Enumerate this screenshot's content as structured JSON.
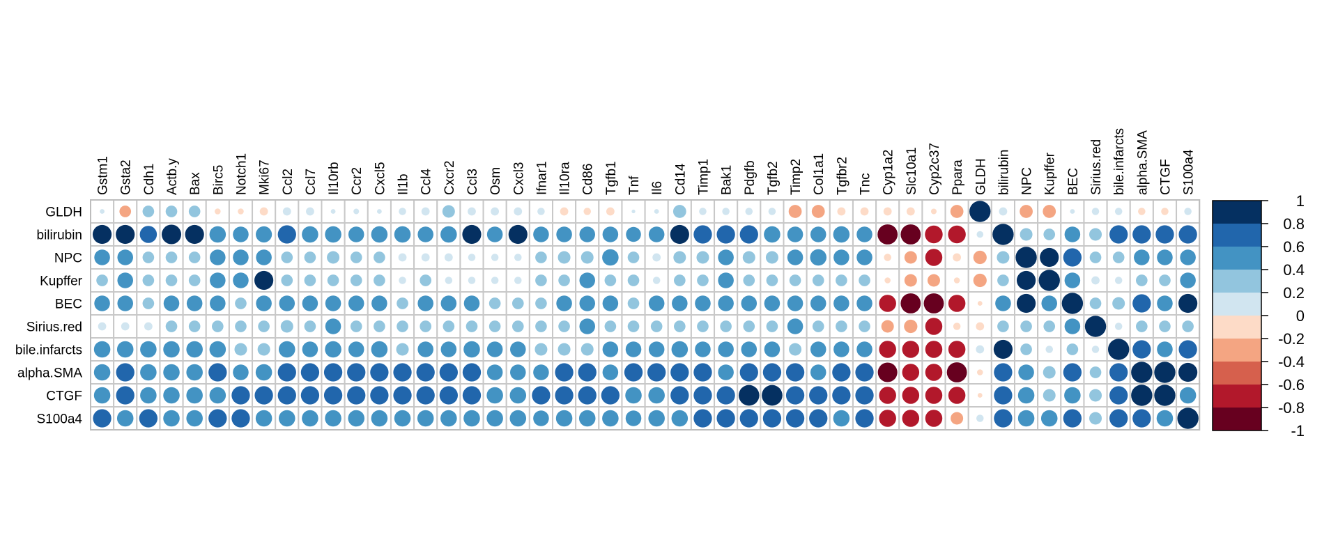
{
  "chart_data": {
    "type": "heatmap",
    "subtype": "correlation-circles",
    "row_labels": [
      "GLDH",
      "bilirubin",
      "NPC",
      "Kupffer",
      "BEC",
      "Sirius.red",
      "bile.infarcts",
      "alpha.SMA",
      "CTGF",
      "S100a4"
    ],
    "col_labels": [
      "Gstm1",
      "Gsta2",
      "Cdh1",
      "Actb.y",
      "Bax",
      "Birc5",
      "Notch1",
      "Mki67",
      "Ccl2",
      "Ccl7",
      "Il10rb",
      "Ccr2",
      "Cxcl5",
      "Il1b",
      "Ccl4",
      "Cxcr2",
      "Ccl3",
      "Osm",
      "Cxcl3",
      "Ifnar1",
      "Il10ra",
      "Cd86",
      "Tgfb1",
      "Tnf",
      "Il6",
      "Cd14",
      "Timp1",
      "Bak1",
      "Pdgfb",
      "Tgfb2",
      "Timp2",
      "Col1a1",
      "Tgfbr2",
      "Tnc",
      "Cyp1a2",
      "Slc10a1",
      "Cyp2c37",
      "Ppara",
      "GLDH",
      "bilirubin",
      "NPC",
      "Kupffer",
      "BEC",
      "Sirius.red",
      "bile.infarcts",
      "alpha.SMA",
      "CTGF",
      "S100a4"
    ],
    "values": [
      [
        0.05,
        -0.3,
        0.3,
        0.3,
        0.3,
        -0.08,
        -0.08,
        -0.15,
        0.15,
        0.15,
        0.05,
        0.07,
        0.05,
        0.12,
        0.15,
        0.35,
        0.15,
        0.15,
        0.15,
        0.12,
        -0.15,
        -0.12,
        -0.15,
        0.03,
        0.05,
        0.38,
        0.12,
        0.12,
        0.12,
        0.12,
        -0.38,
        -0.38,
        -0.15,
        -0.15,
        -0.15,
        -0.15,
        -0.07,
        -0.38,
        1,
        0.15,
        -0.38,
        -0.38,
        0.05,
        0.12,
        0.12,
        -0.12,
        -0.12,
        0.12
      ],
      [
        0.8,
        0.8,
        0.65,
        0.85,
        0.8,
        0.6,
        0.55,
        0.58,
        0.75,
        0.6,
        0.6,
        0.55,
        0.6,
        0.6,
        0.55,
        0.6,
        0.8,
        0.55,
        0.8,
        0.55,
        0.55,
        0.55,
        0.55,
        0.5,
        0.55,
        0.8,
        0.75,
        0.75,
        0.75,
        0.6,
        0.55,
        0.55,
        0.6,
        0.55,
        -0.9,
        -0.9,
        -0.7,
        -0.7,
        0.1,
        1,
        0.35,
        0.3,
        0.55,
        0.35,
        0.75,
        0.75,
        0.75,
        0.75
      ],
      [
        0.55,
        0.55,
        0.3,
        0.3,
        0.3,
        0.55,
        0.55,
        0.55,
        0.3,
        0.3,
        0.35,
        0.3,
        0.3,
        0.15,
        0.15,
        0.15,
        0.12,
        0.12,
        0.12,
        0.3,
        0.35,
        0.35,
        0.6,
        0.3,
        0.15,
        0.35,
        0.35,
        0.55,
        0.35,
        0.35,
        0.55,
        0.6,
        0.55,
        0.55,
        -0.12,
        -0.35,
        -0.65,
        -0.15,
        -0.4,
        0.35,
        1,
        0.8,
        0.75,
        0.3,
        0.3,
        0.55,
        0.55,
        0.55
      ],
      [
        0.3,
        0.55,
        0.3,
        0.3,
        0.3,
        0.55,
        0.55,
        0.8,
        0.3,
        0.3,
        0.3,
        0.3,
        0.3,
        0.12,
        0.3,
        0.12,
        0.12,
        0.12,
        0.12,
        0.3,
        0.3,
        0.55,
        0.3,
        0.3,
        0.12,
        0.3,
        0.3,
        0.55,
        0.3,
        0.3,
        0.3,
        0.3,
        0.3,
        0.3,
        -0.08,
        -0.35,
        -0.35,
        -0.08,
        -0.4,
        0.3,
        0.8,
        1,
        0.55,
        0.15,
        0.12,
        0.3,
        0.3,
        0.55
      ],
      [
        0.55,
        0.55,
        0.3,
        0.55,
        0.55,
        0.55,
        0.3,
        0.55,
        0.55,
        0.55,
        0.55,
        0.55,
        0.55,
        0.3,
        0.55,
        0.55,
        0.55,
        0.3,
        0.3,
        0.3,
        0.55,
        0.55,
        0.55,
        0.3,
        0.55,
        0.55,
        0.55,
        0.55,
        0.55,
        0.55,
        0.55,
        0.55,
        0.55,
        0.55,
        -0.65,
        -0.9,
        -0.9,
        -0.65,
        -0.05,
        0.55,
        0.8,
        0.55,
        1,
        0.3,
        0.35,
        0.75,
        0.55,
        0.8
      ],
      [
        0.15,
        0.15,
        0.15,
        0.3,
        0.3,
        0.3,
        0.3,
        0.3,
        0.35,
        0.3,
        0.55,
        0.3,
        0.3,
        0.3,
        0.3,
        0.3,
        0.3,
        0.3,
        0.3,
        0.3,
        0.3,
        0.55,
        0.3,
        0.3,
        0.3,
        0.3,
        0.3,
        0.3,
        0.3,
        0.3,
        0.55,
        0.3,
        0.3,
        0.3,
        -0.35,
        -0.4,
        -0.65,
        -0.12,
        -0.15,
        0.3,
        0.3,
        0.3,
        0.55,
        1,
        0.12,
        0.3,
        0.3,
        0.3
      ],
      [
        0.6,
        0.6,
        0.6,
        0.6,
        0.6,
        0.6,
        0.35,
        0.35,
        0.6,
        0.55,
        0.6,
        0.55,
        0.6,
        0.35,
        0.55,
        0.55,
        0.6,
        0.55,
        0.55,
        0.35,
        0.35,
        0.35,
        0.55,
        0.55,
        0.55,
        0.6,
        0.55,
        0.55,
        0.55,
        0.55,
        0.35,
        0.55,
        0.55,
        0.55,
        -0.65,
        -0.65,
        -0.65,
        -0.65,
        0.15,
        0.8,
        0.3,
        0.12,
        0.3,
        0.12,
        1,
        0.75,
        0.55,
        0.75
      ],
      [
        0.6,
        0.75,
        0.6,
        0.6,
        0.6,
        0.75,
        0.55,
        0.6,
        0.75,
        0.75,
        0.75,
        0.75,
        0.75,
        0.75,
        0.75,
        0.75,
        0.75,
        0.55,
        0.55,
        0.55,
        0.75,
        0.75,
        0.55,
        0.75,
        0.75,
        0.75,
        0.75,
        0.55,
        0.75,
        0.75,
        0.75,
        0.55,
        0.75,
        0.75,
        -0.85,
        -0.65,
        -0.65,
        -0.9,
        -0.08,
        0.75,
        0.55,
        0.35,
        0.75,
        0.3,
        0.75,
        1,
        1,
        0.8
      ],
      [
        0.6,
        0.75,
        0.6,
        0.6,
        0.6,
        0.6,
        0.75,
        0.75,
        0.75,
        0.75,
        0.75,
        0.75,
        0.75,
        0.75,
        0.75,
        0.75,
        0.75,
        0.6,
        0.6,
        0.75,
        0.75,
        0.75,
        0.75,
        0.6,
        0.6,
        0.75,
        0.75,
        0.75,
        0.95,
        0.95,
        0.75,
        0.75,
        0.75,
        0.75,
        -0.65,
        -0.65,
        -0.65,
        -0.65,
        -0.05,
        0.75,
        0.6,
        0.35,
        0.6,
        0.35,
        0.75,
        1,
        1,
        0.6
      ],
      [
        0.75,
        0.6,
        0.75,
        0.6,
        0.6,
        0.75,
        0.75,
        0.6,
        0.6,
        0.6,
        0.6,
        0.6,
        0.6,
        0.6,
        0.6,
        0.6,
        0.6,
        0.6,
        0.6,
        0.55,
        0.6,
        0.6,
        0.6,
        0.55,
        0.6,
        0.6,
        0.75,
        0.75,
        0.75,
        0.75,
        0.75,
        0.75,
        0.6,
        0.75,
        -0.65,
        -0.65,
        -0.65,
        -0.35,
        0.12,
        0.75,
        0.6,
        0.6,
        0.75,
        0.35,
        0.75,
        0.75,
        0.6,
        1
      ]
    ],
    "legend": {
      "ticks": [
        1,
        0.8,
        0.6,
        0.4,
        0.2,
        0,
        -0.2,
        -0.4,
        -0.6,
        -0.8,
        -1
      ],
      "tick_labels": [
        "1",
        "0.8",
        "0.6",
        "0.4",
        "0.2",
        "0",
        "-0.2",
        "-0.4",
        "-0.6",
        "-0.8",
        "-1"
      ],
      "colors_top_to_bottom": [
        "#053061",
        "#2166AC",
        "#4393C3",
        "#92C5DE",
        "#D1E5F0",
        "#FDDBC7",
        "#F4A582",
        "#D6604D",
        "#B2182B",
        "#67001F"
      ],
      "placement": "right"
    },
    "grid": true
  }
}
